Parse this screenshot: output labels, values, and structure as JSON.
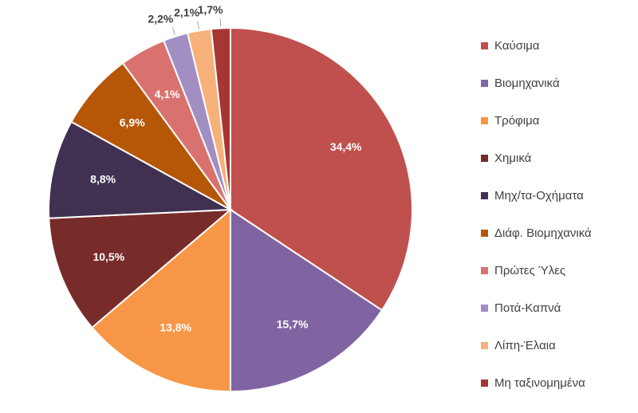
{
  "chart_data": {
    "type": "pie",
    "categories": [
      "Καύσιμα",
      "Βιομηχανικά",
      "Τρόφιμα",
      "Χημικά",
      "Μηχ/τα-Οχήματα",
      "Διάφ. Βιομηχανικά",
      "Πρώτες Ύλες",
      "Ποτά-Καπνά",
      "Λίπη-Έλαια",
      "Μη ταξινομημένα"
    ],
    "values": [
      34.4,
      15.7,
      13.8,
      10.5,
      8.8,
      6.9,
      4.1,
      2.2,
      2.1,
      1.7
    ],
    "data_labels": [
      "34,4%",
      "15,7%",
      "13,8%",
      "10,5%",
      "8,8%",
      "6,9%",
      "4,1%",
      "2,2%",
      "2,1%",
      "1,7%"
    ],
    "colors": [
      "#C0504D",
      "#8064A2",
      "#F79646",
      "#772C2A",
      "#403152",
      "#B65708",
      "#D9726F",
      "#A18FC4",
      "#F8B07A",
      "#A63634"
    ],
    "label_colors": [
      "#ffffff",
      "#ffffff",
      "#ffffff",
      "#ffffff",
      "#ffffff",
      "#ffffff",
      "#ffffff",
      "#404040",
      "#404040",
      "#404040"
    ],
    "legend_position": "right",
    "title": ""
  }
}
